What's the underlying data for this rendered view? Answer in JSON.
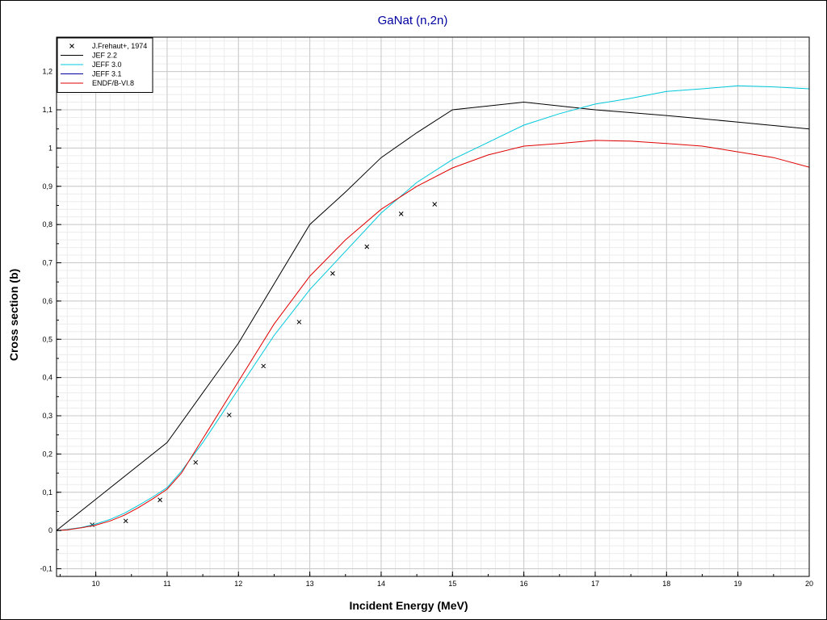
{
  "chart_data": {
    "type": "line",
    "title": "GaNat (n,2n)",
    "title_color": "#0000a0",
    "xlabel": "Incident Energy (MeV)",
    "ylabel": "Cross section (b)",
    "xlim": [
      9.45,
      20
    ],
    "ylim": [
      -0.12,
      1.29
    ],
    "xticks": [
      10,
      11,
      12,
      13,
      14,
      15,
      16,
      17,
      18,
      19,
      20
    ],
    "xtick_labels": [
      "10",
      "11",
      "12",
      "13",
      "14",
      "15",
      "16",
      "17",
      "18",
      "19",
      "20"
    ],
    "yticks": [
      -0.1,
      0,
      0.1,
      0.2,
      0.3,
      0.4,
      0.5,
      0.6,
      0.7,
      0.8,
      0.9,
      1.0,
      1.1,
      1.2
    ],
    "ytick_labels": [
      "-0,1",
      "0",
      "0,1",
      "0,2",
      "0,3",
      "0,4",
      "0,5",
      "0,6",
      "0,7",
      "0,8",
      "0,9",
      "1",
      "1,1",
      "1,2"
    ],
    "grid": true,
    "legend_position": "top-left",
    "series": [
      {
        "name": "J.Frehaut+, 1974",
        "kind": "scatter",
        "marker": "x",
        "color": "#000000",
        "x": [
          9.95,
          10.42,
          10.9,
          11.4,
          11.87,
          12.35,
          12.85,
          13.32,
          13.8,
          14.28,
          14.75
        ],
        "y": [
          0.015,
          0.025,
          0.08,
          0.178,
          0.302,
          0.43,
          0.545,
          0.672,
          0.742,
          0.828,
          0.853
        ]
      },
      {
        "name": "JEF 2.2",
        "kind": "line",
        "color": "#000000",
        "x": [
          9.45,
          11.0,
          12.0,
          13.0,
          13.5,
          14.0,
          14.5,
          15.0,
          16.0,
          17.0,
          18.0,
          19.0,
          20.0
        ],
        "y": [
          0.0,
          0.23,
          0.49,
          0.8,
          0.885,
          0.975,
          1.04,
          1.1,
          1.12,
          1.1,
          1.085,
          1.068,
          1.05
        ]
      },
      {
        "name": "JEFF 3.0",
        "kind": "line",
        "color": "#00c8dc",
        "x": [
          9.45,
          9.6,
          9.8,
          10.0,
          10.2,
          10.4,
          10.6,
          10.8,
          11.0,
          11.2,
          11.5,
          12.0,
          12.5,
          13.0,
          13.5,
          14.0,
          14.5,
          15.0,
          15.5,
          16.0,
          16.5,
          17.0,
          17.5,
          18.0,
          18.5,
          19.0,
          19.5,
          20.0
        ],
        "y": [
          0.0,
          0.003,
          0.008,
          0.017,
          0.029,
          0.045,
          0.066,
          0.088,
          0.112,
          0.155,
          0.23,
          0.37,
          0.51,
          0.63,
          0.73,
          0.83,
          0.91,
          0.97,
          1.015,
          1.06,
          1.09,
          1.115,
          1.13,
          1.148,
          1.155,
          1.163,
          1.16,
          1.155
        ]
      },
      {
        "name": "JEFF 3.1",
        "kind": "line",
        "color": "#0000a0",
        "x": [],
        "y": []
      },
      {
        "name": "ENDF/B-VI.8",
        "kind": "line",
        "color": "#e00000",
        "x": [
          9.45,
          9.6,
          9.8,
          10.0,
          10.2,
          10.4,
          10.6,
          10.8,
          11.0,
          11.2,
          11.5,
          12.0,
          12.5,
          13.0,
          13.5,
          14.0,
          14.5,
          15.0,
          15.5,
          16.0,
          16.5,
          17.0,
          17.5,
          18.0,
          18.5,
          19.0,
          19.5,
          20.0
        ],
        "y": [
          0.0,
          0.002,
          0.007,
          0.014,
          0.025,
          0.04,
          0.06,
          0.083,
          0.108,
          0.15,
          0.24,
          0.39,
          0.54,
          0.665,
          0.76,
          0.84,
          0.9,
          0.948,
          0.982,
          1.005,
          1.012,
          1.02,
          1.018,
          1.012,
          1.005,
          0.99,
          0.975,
          0.95
        ]
      }
    ]
  }
}
